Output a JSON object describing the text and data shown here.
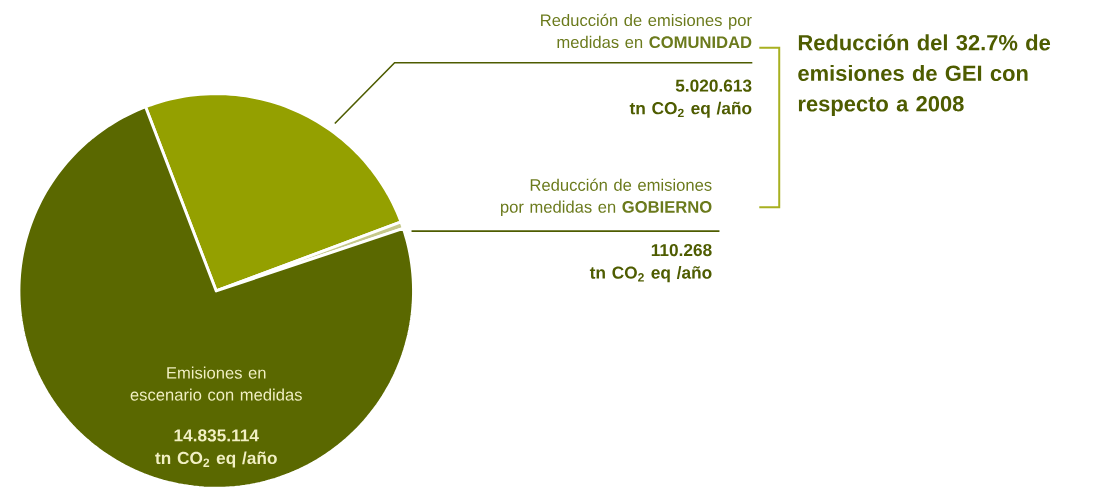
{
  "chart_data": {
    "type": "pie",
    "categories": [
      "Reducción de emisiones por medidas en **COMUNIDAD**",
      "Reducción de emisiones por medidas en **GOBIERNO**",
      "Emisiones en escenario con medidas"
    ],
    "values": [
      5020613,
      110268,
      14835114
    ],
    "colors": [
      "#94a000",
      "#c5c88a",
      "#5a6800"
    ],
    "value_labels": [
      "5.020.613\ntn CO$_{2}$ eq /año",
      "110.268\ntn CO$_{2}$ eq /año",
      "14.835.114\ntn CO$_{2}$ eq /año"
    ],
    "annotations": [
      "Reducción del 32.7% de emisiones de GEI con respecto a 2008"
    ]
  }
}
